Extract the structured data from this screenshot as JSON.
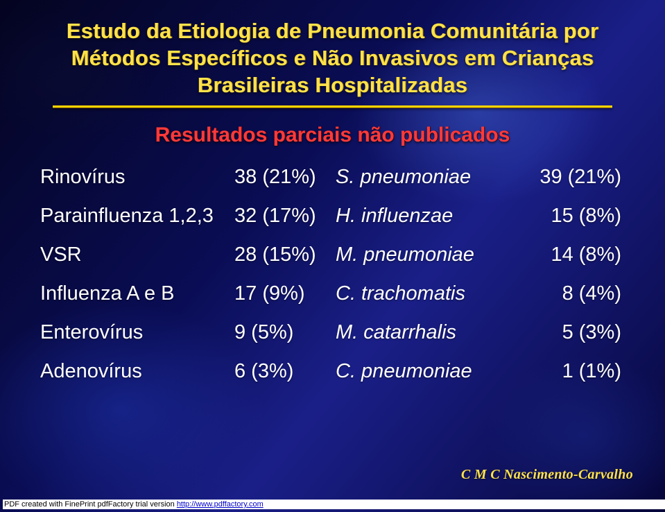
{
  "title": {
    "line1": "Estudo da Etiologia de Pneumonia Comunitária por",
    "line2": "Métodos Específicos e Não Invasivos em Crianças",
    "line3": "Brasileiras Hospitalizadas",
    "color": "#ffe24a",
    "fontsize": 31,
    "weight": 700
  },
  "rule": {
    "top_color": "#ffd400",
    "bottom_color": "#6f5400",
    "thickness": 3
  },
  "subtitle": {
    "text": "Resultados parciais não publicados",
    "color": "#ff3a3a",
    "fontsize": 30,
    "weight": 700
  },
  "typography": {
    "body_fontsize": 29,
    "body_color": "#ffffff",
    "font_family": "Arial"
  },
  "background": {
    "base_gradient": [
      "#040420",
      "#0a0d55",
      "#1a1f88",
      "#06063a"
    ],
    "blotch_colors": [
      "#3c5ac8",
      "#1e32aa",
      "#19288c",
      "#0a0c32"
    ]
  },
  "columns": {
    "left_label_width": 280,
    "left_val_width": 146,
    "right_label_width": 262,
    "right_val_width": 150
  },
  "rows": [
    {
      "left_label": "Rinovírus",
      "left_val": "38 (21%)",
      "right_label": "S. pneumoniae",
      "right_italic": true,
      "right_val": "39 (21%)"
    },
    {
      "left_label": "Parainfluenza 1,2,3",
      "left_val": "32 (17%)",
      "right_label": "H. influenzae",
      "right_italic": true,
      "right_val": "15 (8%)"
    },
    {
      "left_label": "VSR",
      "left_val": "28 (15%)",
      "right_label": "M. pneumoniae",
      "right_italic": true,
      "right_val": "14 (8%)"
    },
    {
      "left_label": "Influenza A e B",
      "left_val": "17 (9%)",
      "right_label": "C. trachomatis",
      "right_italic": true,
      "right_val": "8 (4%)"
    },
    {
      "left_label": "Enterovírus",
      "left_val": "9 (5%)",
      "right_label": "M. catarrhalis",
      "right_italic": true,
      "right_val": "5 (3%)"
    },
    {
      "left_label": "Adenovírus",
      "left_val": "6 (3%)",
      "right_label": "C. pneumoniae",
      "right_italic": true,
      "right_val": "1 (1%)"
    }
  ],
  "credit": {
    "text": "C M C Nascimento-Carvalho",
    "color": "#ffe24a",
    "fontsize": 20
  },
  "footer": {
    "prefix": "PDF created with FinePrint pdfFactory trial version ",
    "link_text": "http://www.pdffactory.com",
    "fontsize": 11,
    "text_color": "#000000",
    "link_color": "#0000cc",
    "bg_color": "#ffffff"
  }
}
